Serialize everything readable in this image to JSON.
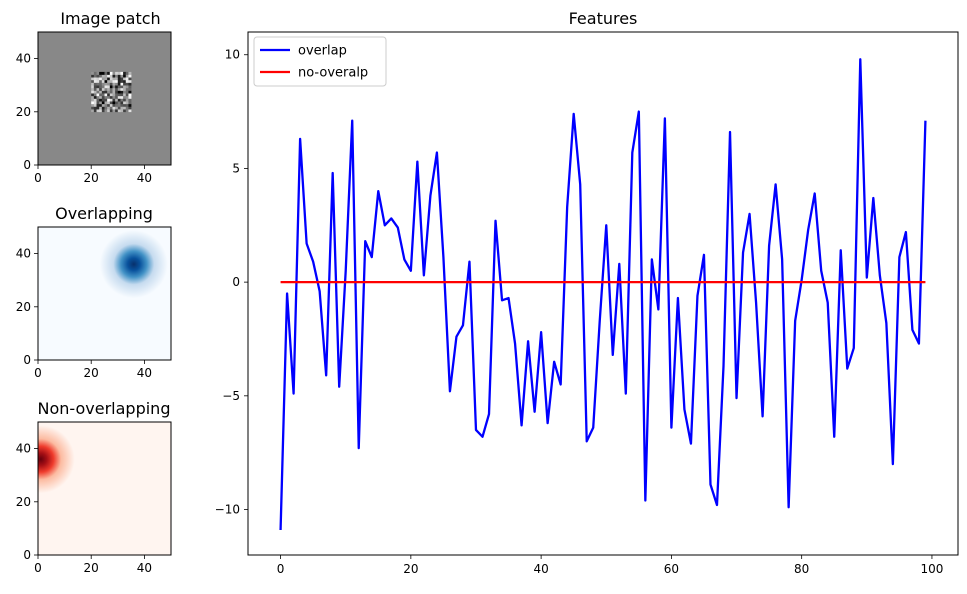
{
  "colors": {
    "overlap": "#0000ff",
    "no_overlap": "#ff0000",
    "patch_bg": "#888888"
  },
  "chart_data": [
    {
      "type": "heatmap",
      "title": "Image patch",
      "colormap": "gray",
      "xlim": [
        0,
        50
      ],
      "ylim": [
        0,
        50
      ],
      "xticks": [
        "0",
        "20",
        "40"
      ],
      "yticks": [
        "0",
        "20",
        "40"
      ],
      "background_value": 0.53,
      "noise_region": {
        "x": [
          20,
          35
        ],
        "y": [
          20,
          35
        ]
      }
    },
    {
      "type": "heatmap",
      "title": "Overlapping",
      "colormap": "Blues",
      "xlim": [
        0,
        50
      ],
      "ylim": [
        0,
        50
      ],
      "xticks": [
        "0",
        "20",
        "40"
      ],
      "yticks": [
        "0",
        "20",
        "40"
      ],
      "gaussian_center": [
        36,
        36
      ],
      "gaussian_sigma": 4.5
    },
    {
      "type": "heatmap",
      "title": "Non-overlapping",
      "colormap": "Reds",
      "xlim": [
        0,
        50
      ],
      "ylim": [
        0,
        50
      ],
      "xticks": [
        "0",
        "20",
        "40"
      ],
      "yticks": [
        "0",
        "20",
        "40"
      ],
      "gaussian_center": [
        1,
        36
      ],
      "gaussian_sigma": 4.5
    },
    {
      "type": "line",
      "title": "Features",
      "xlim": [
        -5,
        104
      ],
      "ylim": [
        -12,
        11
      ],
      "xticks": [
        0,
        20,
        40,
        60,
        80,
        100
      ],
      "yticks": [
        -10,
        -5,
        0,
        5,
        10
      ],
      "legend_position": "top-left",
      "series": [
        {
          "name": "overlap",
          "color": "#0000ff",
          "x": [
            0,
            1,
            2,
            3,
            4,
            5,
            6,
            7,
            8,
            9,
            10,
            11,
            12,
            13,
            14,
            15,
            16,
            17,
            18,
            19,
            20,
            21,
            22,
            23,
            24,
            25,
            26,
            27,
            28,
            29,
            30,
            31,
            32,
            33,
            34,
            35,
            36,
            37,
            38,
            39,
            40,
            41,
            42,
            43,
            44,
            45,
            46,
            47,
            48,
            49,
            50,
            51,
            52,
            53,
            54,
            55,
            56,
            57,
            58,
            59,
            60,
            61,
            62,
            63,
            64,
            65,
            66,
            67,
            68,
            69,
            70,
            71,
            72,
            73,
            74,
            75,
            76,
            77,
            78,
            79,
            80,
            81,
            82,
            83,
            84,
            85,
            86,
            87,
            88,
            89,
            90,
            91,
            92,
            93,
            94,
            95,
            96,
            97,
            98,
            99
          ],
          "values": [
            -10.9,
            -0.5,
            -4.9,
            6.3,
            1.7,
            0.9,
            -0.4,
            -4.1,
            4.8,
            -4.6,
            0.5,
            7.1,
            -7.3,
            1.8,
            1.1,
            4.0,
            2.5,
            2.8,
            2.4,
            1.0,
            0.5,
            5.3,
            0.3,
            3.8,
            5.7,
            1.1,
            -4.8,
            -2.4,
            -1.9,
            0.9,
            -6.5,
            -6.8,
            -5.8,
            2.7,
            -0.8,
            -0.7,
            -2.7,
            -6.3,
            -2.6,
            -5.7,
            -2.2,
            -6.2,
            -3.5,
            -4.5,
            3.3,
            7.4,
            4.3,
            -7.0,
            -6.4,
            -1.7,
            2.5,
            -3.2,
            0.8,
            -4.9,
            5.7,
            7.5,
            -9.6,
            1.0,
            -1.2,
            7.2,
            -6.4,
            -0.7,
            -5.6,
            -7.1,
            -0.6,
            1.2,
            -8.9,
            -9.8,
            -3.7,
            6.6,
            -5.1,
            1.3,
            3.0,
            -0.9,
            -5.9,
            1.6,
            4.3,
            1.0,
            -9.9,
            -1.7,
            0.1,
            2.3,
            3.9,
            0.5,
            -0.9,
            -6.8,
            1.4,
            -3.8,
            -2.9,
            9.8,
            0.2,
            3.7,
            0.3,
            -1.8,
            -8.0,
            1.1,
            2.2,
            -2.1,
            -2.7,
            7.1
          ]
        },
        {
          "name": "no-overalp",
          "color": "#ff0000",
          "x": [
            0,
            99
          ],
          "values": [
            0,
            0
          ]
        }
      ]
    }
  ]
}
